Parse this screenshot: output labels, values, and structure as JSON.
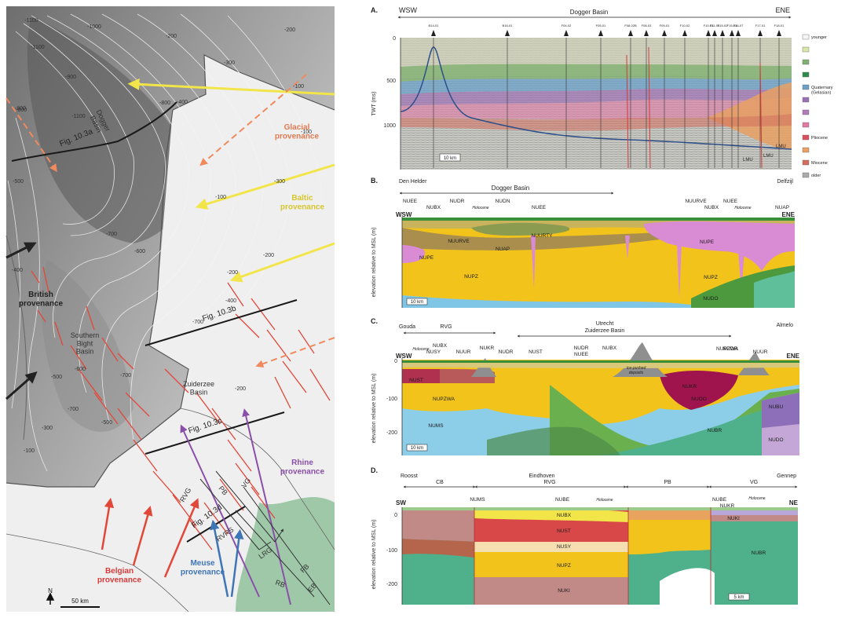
{
  "map": {
    "contours": [
      "-1100",
      "-1100",
      "-1100",
      "-1000",
      "-900",
      "-800",
      "-800",
      "-700",
      "-700",
      "-700",
      "-700",
      "-600",
      "-600",
      "-500",
      "-500",
      "-400",
      "-400",
      "-300",
      "-300",
      "-300",
      "-200",
      "-200",
      "-200",
      "-200",
      "-200",
      "-100",
      "-100",
      "-100",
      "-100",
      "-800",
      "-500",
      "-400"
    ],
    "labels": {
      "dogger": "Dogger\nBasin",
      "southern": "Southern\nBight\nBasin",
      "zuiderzee": "Zuiderzee\nBasin",
      "glacial": "Glacial\nprovenance",
      "baltic": "Baltic\nprovenance",
      "british": "British\nprovenance",
      "rhine": "Rhine\nprovenance",
      "belgian": "Belgian\nprovenance",
      "meuse": "Meuse\nprovenance"
    },
    "figrefs": [
      "Fig. 10.3a",
      "Fig. 10.3b",
      "Fig. 10.3c",
      "Fig. 10.3d"
    ],
    "structures": [
      "RVG",
      "PB",
      "VG",
      "RVRS",
      "LRG",
      "RB",
      "FB",
      "EB"
    ],
    "north": "N",
    "scale": "50 km",
    "colors": {
      "glacial": "#f08a5d",
      "baltic": "#f2e54a",
      "rhine": "#8a4fa8",
      "meuse": "#3f74b5",
      "belgian": "#d93a3a",
      "fault": "#e2483a"
    }
  },
  "panelA": {
    "letter": "A.",
    "left": "WSW",
    "right": "ENE",
    "basin": "Dogger Basin",
    "wells": [
      "B14-01",
      "B16-01",
      "F04-02",
      "F05-01",
      "F08-02B",
      "F08-03",
      "F09-01",
      "F10-02",
      "F10-03",
      "F11-01",
      "F15-02",
      "F15-03",
      "F16-07",
      "F17-01",
      "F18-01"
    ],
    "ylabel": "TWT (ms)",
    "yticks": [
      "0",
      "500",
      "1000"
    ],
    "scale": "10 km",
    "marks": [
      "LMU",
      "LMU",
      "LMU"
    ],
    "legend": [
      "younger",
      "",
      "",
      "",
      "Quaternary\n(Gelasian)",
      "",
      "",
      "",
      "Pliocene",
      "",
      "Miocene",
      "older"
    ]
  },
  "panelB": {
    "letter": "B.",
    "leftTown": "Den Helder",
    "rightTown": "Delfzijl",
    "basin": "Dogger Basin",
    "left": "WSW",
    "right": "ENE",
    "units": [
      "NUEE",
      "NUBX",
      "NUDR",
      "Holocene",
      "NUDN",
      "NUEE",
      "NUURVE",
      "NUBX",
      "NUEE",
      "Holocene",
      "NUAP",
      "NUURVE",
      "NUURTY",
      "NUAP",
      "NUPE",
      "NUPZ",
      "NUPE",
      "NUPZ",
      "NUDO"
    ],
    "ylabel": "elevation relative to MSL (m)",
    "scale": "10 km"
  },
  "panelC": {
    "letter": "C.",
    "leftTown": "Gouda",
    "group": "RVG",
    "centerTown": "Utrecht",
    "basin": "Zuiderzee Basin",
    "rightTown": "Almelo",
    "left": "WSW",
    "right": "ENE",
    "units": [
      "Holocene",
      "NUBX",
      "NUSY",
      "NUUR",
      "NUKR",
      "NUDR",
      "NUST",
      "NUDR",
      "NUEE",
      "NUBX",
      "NUPZWA",
      "NUDR",
      "NUUR",
      "NUST",
      "ice-pushed\ndeposits",
      "NUKR",
      "NUPZWA",
      "NUOO",
      "NUMS",
      "NUBR",
      "NUBU",
      "NUDO"
    ],
    "ylabel": "elevation relative to MSL (m)",
    "yticks": [
      "0",
      "-100",
      "-200"
    ],
    "scale": "10 km"
  },
  "panelD": {
    "letter": "D.",
    "towns": [
      "Roosst",
      "Eindhoven",
      "Gennep"
    ],
    "groups": [
      "CB",
      "RVG",
      "PB",
      "VG"
    ],
    "left": "SW",
    "right": "NE",
    "units": [
      "NUMS",
      "NUBE",
      "Holocene",
      "NUBE",
      "NUKR",
      "Holocene",
      "NUBX",
      "NUST",
      "NUSY",
      "NUPZ",
      "NUKI",
      "NUKI",
      "NUBR"
    ],
    "ylabel": "elevation relative to MSL (m)",
    "yticks": [
      "0",
      "-100",
      "-200"
    ],
    "scale": "5 km"
  }
}
